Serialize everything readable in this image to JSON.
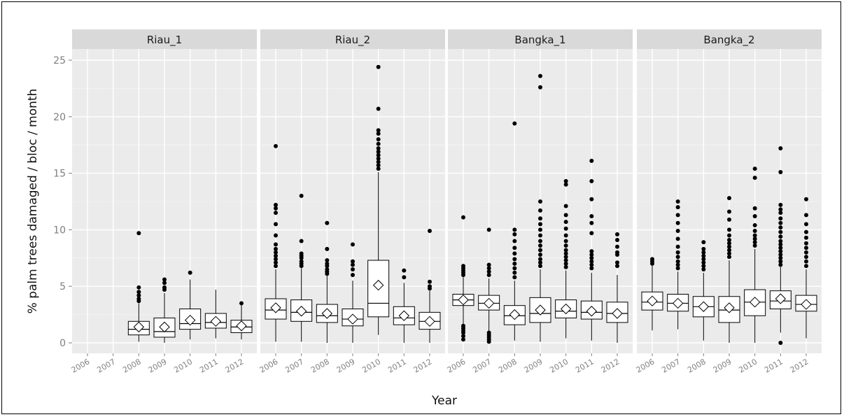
{
  "chart_data": {
    "type": "boxplot",
    "xlabel": "Year",
    "ylabel": "% palm trees damaged / bloc / month",
    "ylim": [
      -1.5,
      25.5
    ],
    "yticks": [
      0,
      5,
      10,
      15,
      20,
      25
    ],
    "categories": [
      "2006",
      "2007",
      "2008",
      "2009",
      "2010",
      "2011",
      "2012"
    ],
    "colors": {
      "panel_bg": "#ebebeb",
      "strip_bg": "#d9d9d9",
      "grid": "#ffffff",
      "box_fill": "#ffffff",
      "ink": "#000000"
    },
    "facets": [
      {
        "name": "Riau_1",
        "boxes": [
          {
            "year": "2008",
            "min": 0.1,
            "q1": 0.7,
            "median": 1.2,
            "q3": 1.9,
            "max": 3.5,
            "mean": 1.4,
            "outliers": [
              3.7,
              3.9,
              4.2,
              4.5,
              4.9,
              9.7
            ]
          },
          {
            "year": "2009",
            "min": 0.0,
            "q1": 0.5,
            "median": 1.0,
            "q3": 2.2,
            "max": 4.4,
            "mean": 1.4,
            "outliers": [
              4.7,
              4.9,
              5.3,
              5.6
            ]
          },
          {
            "year": "2010",
            "min": 0.3,
            "q1": 1.2,
            "median": 1.7,
            "q3": 3.0,
            "max": 5.6,
            "mean": 2.0,
            "outliers": [
              6.2
            ]
          },
          {
            "year": "2011",
            "min": 0.4,
            "q1": 1.3,
            "median": 1.8,
            "q3": 2.6,
            "max": 4.7,
            "mean": 1.9,
            "outliers": []
          },
          {
            "year": "2012",
            "min": 0.3,
            "q1": 0.9,
            "median": 1.4,
            "q3": 2.0,
            "max": 3.5,
            "mean": 1.5,
            "outliers": [
              3.5
            ]
          }
        ]
      },
      {
        "name": "Riau_2",
        "boxes": [
          {
            "year": "2006",
            "min": 0.1,
            "q1": 2.1,
            "median": 2.9,
            "q3": 3.9,
            "max": 6.5,
            "mean": 3.1,
            "outliers": [
              6.8,
              7.1,
              7.4,
              7.7,
              8.0,
              8.3,
              8.7,
              9.5,
              10.5,
              11.5,
              11.9,
              12.2,
              17.4
            ]
          },
          {
            "year": "2007",
            "min": 0.1,
            "q1": 1.9,
            "median": 2.7,
            "q3": 3.8,
            "max": 6.6,
            "mean": 2.8,
            "outliers": [
              6.8,
              7.0,
              7.2,
              7.5,
              7.7,
              7.9,
              9.0,
              13.0
            ]
          },
          {
            "year": "2008",
            "min": 0.0,
            "q1": 1.8,
            "median": 2.4,
            "q3": 3.4,
            "max": 5.9,
            "mean": 2.6,
            "outliers": [
              6.1,
              6.3,
              6.5,
              6.8,
              7.0,
              7.3,
              8.3,
              10.6
            ]
          },
          {
            "year": "2009",
            "min": 0.0,
            "q1": 1.5,
            "median": 2.1,
            "q3": 3.0,
            "max": 5.5,
            "mean": 2.1,
            "outliers": [
              6.0,
              6.5,
              6.9,
              7.2,
              8.7
            ]
          },
          {
            "year": "2010",
            "min": 0.7,
            "q1": 2.3,
            "median": 3.5,
            "q3": 7.3,
            "max": 15.1,
            "mean": 5.1,
            "outliers": [
              15.4,
              15.7,
              16.0,
              16.3,
              16.6,
              16.9,
              17.2,
              17.6,
              18.0,
              18.5,
              18.8,
              20.7,
              24.4
            ]
          },
          {
            "year": "2011",
            "min": 0.0,
            "q1": 1.6,
            "median": 2.2,
            "q3": 3.2,
            "max": 5.3,
            "mean": 2.4,
            "outliers": [
              5.8,
              6.4
            ]
          },
          {
            "year": "2012",
            "min": 0.0,
            "q1": 1.2,
            "median": 1.9,
            "q3": 2.7,
            "max": 4.6,
            "mean": 1.9,
            "outliers": [
              4.8,
              5.0,
              5.4,
              9.9
            ]
          }
        ]
      },
      {
        "name": "Bangka_1",
        "boxes": [
          {
            "year": "2006",
            "min": 1.5,
            "q1": 3.3,
            "median": 3.8,
            "q3": 4.3,
            "max": 5.8,
            "mean": 3.8,
            "outliers": [
              0.3,
              0.6,
              0.9,
              1.1,
              1.3,
              1.5,
              6.0,
              6.2,
              6.4,
              6.6,
              6.8,
              11.1
            ]
          },
          {
            "year": "2007",
            "min": 1.0,
            "q1": 2.9,
            "median": 3.5,
            "q3": 4.2,
            "max": 5.7,
            "mean": 3.5,
            "outliers": [
              0.1,
              0.3,
              0.5,
              0.7,
              0.9,
              6.0,
              6.3,
              6.6,
              6.9,
              10.0
            ]
          },
          {
            "year": "2008",
            "min": 0.2,
            "q1": 1.6,
            "median": 2.4,
            "q3": 3.3,
            "max": 5.5,
            "mean": 2.5,
            "outliers": [
              5.8,
              6.2,
              6.6,
              7.0,
              7.4,
              7.9,
              8.4,
              9.0,
              9.6,
              10.0,
              19.4
            ]
          },
          {
            "year": "2009",
            "min": 0.1,
            "q1": 1.8,
            "median": 2.6,
            "q3": 4.0,
            "max": 6.5,
            "mean": 2.9,
            "outliers": [
              6.8,
              7.1,
              7.4,
              7.8,
              8.2,
              8.6,
              9.0,
              9.5,
              10.0,
              10.5,
              11.0,
              11.7,
              12.5,
              22.6,
              23.6
            ]
          },
          {
            "year": "2010",
            "min": 0.4,
            "q1": 2.2,
            "median": 2.8,
            "q3": 3.8,
            "max": 6.4,
            "mean": 3.0,
            "outliers": [
              6.7,
              7.0,
              7.3,
              7.6,
              7.9,
              8.2,
              8.6,
              9.0,
              9.5,
              10.1,
              10.7,
              11.3,
              12.1,
              14.0,
              14.3
            ]
          },
          {
            "year": "2011",
            "min": 0.2,
            "q1": 2.1,
            "median": 2.7,
            "q3": 3.7,
            "max": 6.2,
            "mean": 2.8,
            "outliers": [
              6.6,
              6.9,
              7.2,
              7.5,
              7.8,
              8.1,
              9.7,
              10.6,
              11.2,
              12.7,
              14.3,
              16.1
            ]
          },
          {
            "year": "2012",
            "min": 0.0,
            "q1": 1.8,
            "median": 2.6,
            "q3": 3.6,
            "max": 6.0,
            "mean": 2.6,
            "outliers": [
              6.8,
              7.1,
              7.8,
              8.0,
              8.5,
              9.1,
              9.6
            ]
          }
        ]
      },
      {
        "name": "Bangka_2",
        "boxes": [
          {
            "year": "2006",
            "min": 1.1,
            "q1": 2.9,
            "median": 3.6,
            "q3": 4.5,
            "max": 6.8,
            "mean": 3.7,
            "outliers": [
              7.0,
              7.2,
              7.4
            ]
          },
          {
            "year": "2007",
            "min": 1.2,
            "q1": 2.8,
            "median": 3.5,
            "q3": 4.3,
            "max": 6.3,
            "mean": 3.5,
            "outliers": [
              6.6,
              6.9,
              7.2,
              7.6,
              8.0,
              8.5,
              9.2,
              9.9,
              10.6,
              11.3,
              12.0,
              12.5
            ]
          },
          {
            "year": "2008",
            "min": 0.2,
            "q1": 2.3,
            "median": 3.2,
            "q3": 4.1,
            "max": 6.2,
            "mean": 3.2,
            "outliers": [
              6.5,
              6.8,
              7.1,
              7.4,
              7.7,
              8.0,
              8.3,
              8.9
            ]
          },
          {
            "year": "2009",
            "min": 0.0,
            "q1": 1.8,
            "median": 2.9,
            "q3": 4.1,
            "max": 7.3,
            "mean": 3.1,
            "outliers": [
              7.6,
              7.9,
              8.2,
              8.5,
              8.8,
              9.1,
              9.5,
              10.0,
              10.9,
              11.6,
              12.8
            ]
          },
          {
            "year": "2010",
            "min": 0.0,
            "q1": 2.4,
            "median": 3.6,
            "q3": 4.7,
            "max": 8.3,
            "mean": 3.6,
            "outliers": [
              8.6,
              8.9,
              9.2,
              9.5,
              9.9,
              10.4,
              11.2,
              11.9,
              14.6,
              15.4
            ]
          },
          {
            "year": "2011",
            "min": 0.9,
            "q1": 3.0,
            "median": 3.7,
            "q3": 4.6,
            "max": 6.7,
            "mean": 3.9,
            "outliers": [
              0.0,
              6.9,
              7.2,
              7.5,
              7.8,
              8.1,
              8.4,
              8.7,
              9.0,
              9.4,
              9.8,
              10.2,
              10.6,
              11.0,
              11.5,
              11.8,
              12.2,
              15.1,
              17.2
            ]
          },
          {
            "year": "2012",
            "min": 0.4,
            "q1": 2.8,
            "median": 3.4,
            "q3": 4.2,
            "max": 6.5,
            "mean": 3.4,
            "outliers": [
              6.8,
              7.2,
              7.6,
              8.0,
              8.4,
              8.8,
              9.3,
              9.8,
              10.5,
              11.3,
              12.7
            ]
          }
        ]
      }
    ]
  }
}
